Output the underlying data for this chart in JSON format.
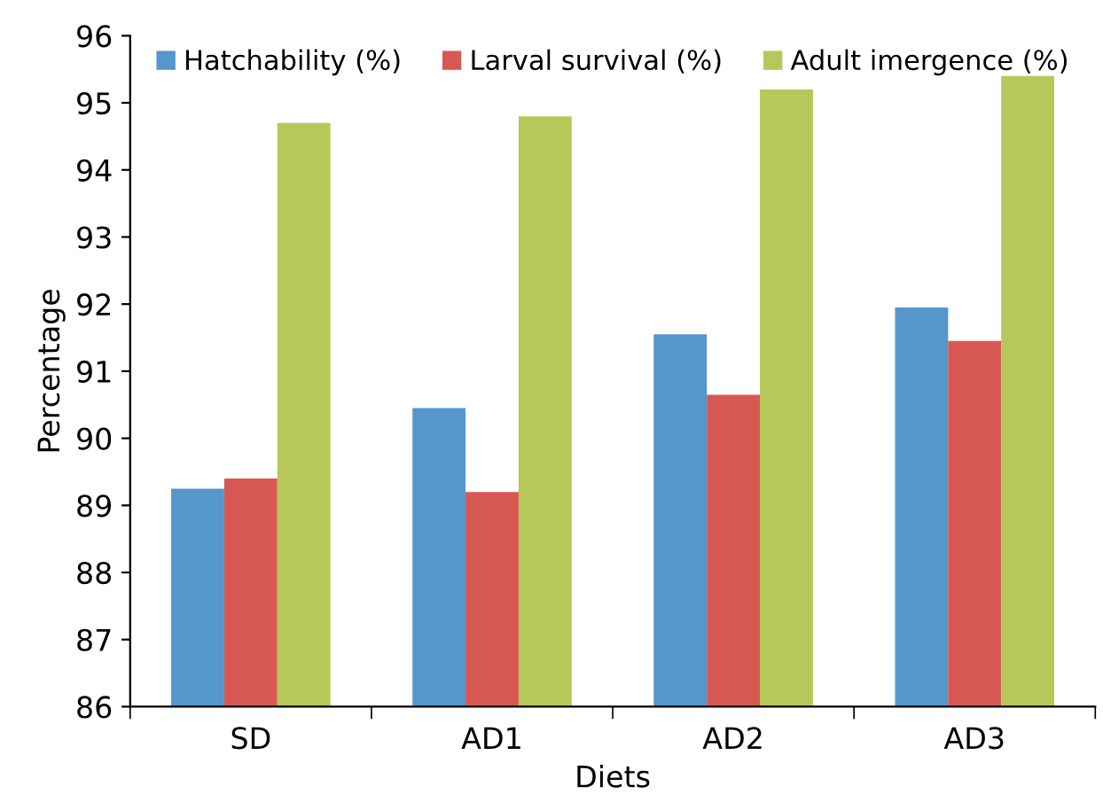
{
  "chart_data": {
    "type": "bar",
    "xlabel": "Diets",
    "ylabel": "Percentage",
    "categories": [
      "SD",
      "AD1",
      "AD2",
      "AD3"
    ],
    "series": [
      {
        "name": "Hatchability (%)",
        "color": "#5596cb",
        "values": [
          89.25,
          90.45,
          91.55,
          91.95
        ]
      },
      {
        "name": "Larval survival (%)",
        "color": "#d75852",
        "values": [
          89.4,
          89.2,
          90.65,
          91.45
        ]
      },
      {
        "name": "Adult imergence (%)",
        "color": "#b8c75a",
        "values": [
          94.7,
          94.8,
          95.2,
          95.4
        ]
      }
    ],
    "ylim": [
      86,
      96
    ],
    "yticks": [
      86,
      87,
      88,
      89,
      90,
      91,
      92,
      93,
      94,
      95,
      96
    ],
    "grid": false,
    "legend": "top"
  }
}
